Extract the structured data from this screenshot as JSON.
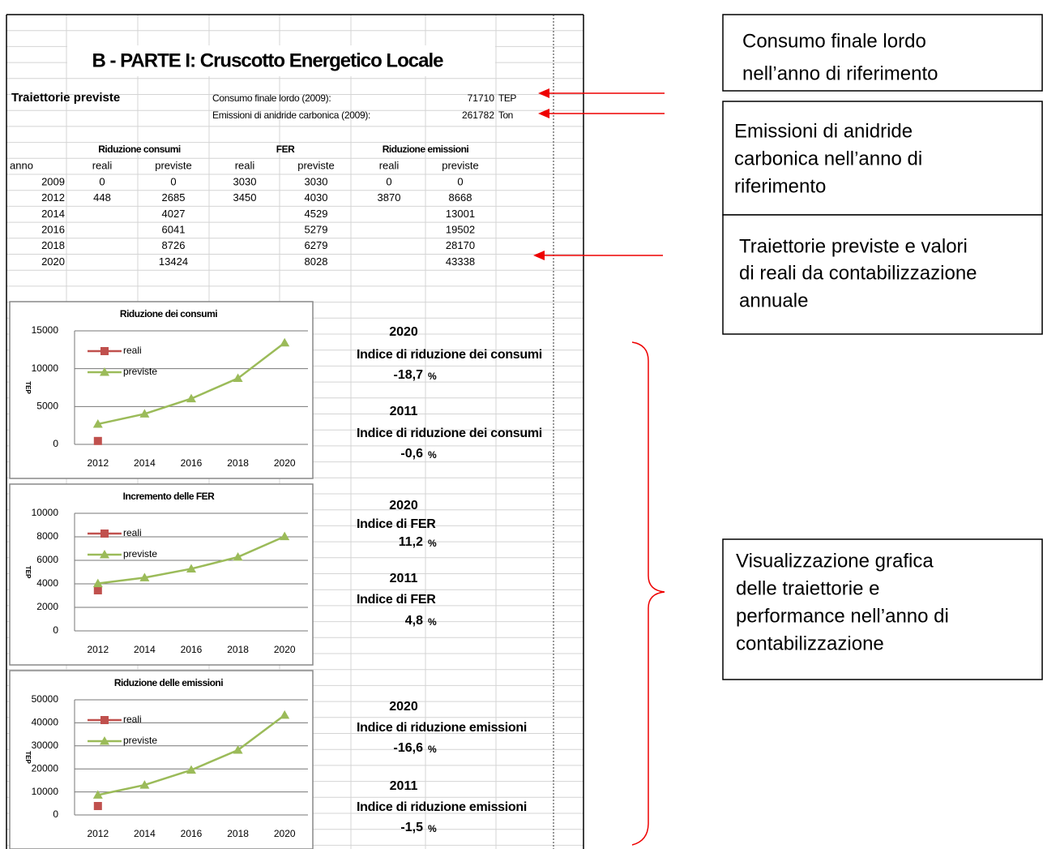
{
  "title": "B - PARTE I: Cruscotto Energetico Locale",
  "section_label": "Traiettorie previste",
  "info": [
    {
      "label": "Consumo finale lordo (2009):",
      "value": 71710,
      "unit": "TEP"
    },
    {
      "label": "Emissioni di anidride carbonica (2009):",
      "value": 261782,
      "unit": "Ton"
    }
  ],
  "table": {
    "group_headers": [
      "Riduzione consumi",
      "FER",
      "Riduzione emissioni"
    ],
    "columns": [
      "anno",
      "reali",
      "previste",
      "reali",
      "previste",
      "reali",
      "previste"
    ],
    "rows": [
      [
        2009,
        0,
        0,
        3030,
        3030,
        0,
        0
      ],
      [
        2012,
        448,
        2685,
        3450,
        4030,
        3870,
        8668
      ],
      [
        2014,
        null,
        4027,
        null,
        4529,
        null,
        13001
      ],
      [
        2016,
        null,
        6041,
        null,
        5279,
        null,
        19502
      ],
      [
        2018,
        null,
        8726,
        null,
        6279,
        null,
        28170
      ],
      [
        2020,
        null,
        13424,
        null,
        8028,
        null,
        43338
      ]
    ]
  },
  "chart_data": [
    {
      "type": "line",
      "title": "Riduzione dei consumi",
      "ylabel": "TEP",
      "categories": [
        2012,
        2014,
        2016,
        2018,
        2020
      ],
      "series": [
        {
          "name": "reali",
          "color": "#c0504d",
          "marker": "square",
          "values": [
            448,
            null,
            null,
            null,
            null
          ]
        },
        {
          "name": "previste",
          "color": "#9bbb59",
          "marker": "triangle",
          "values": [
            2685,
            4027,
            6041,
            8726,
            13424
          ]
        }
      ],
      "ylim": [
        0,
        15000
      ],
      "yticks": [
        0,
        5000,
        10000,
        15000
      ],
      "grid": true
    },
    {
      "type": "line",
      "title": "Incremento delle FER",
      "ylabel": "TEP",
      "categories": [
        2012,
        2014,
        2016,
        2018,
        2020
      ],
      "series": [
        {
          "name": "reali",
          "color": "#c0504d",
          "marker": "square",
          "values": [
            3450,
            null,
            null,
            null,
            null
          ]
        },
        {
          "name": "previste",
          "color": "#9bbb59",
          "marker": "triangle",
          "values": [
            4030,
            4529,
            5279,
            6279,
            8028
          ]
        }
      ],
      "ylim": [
        0,
        10000
      ],
      "yticks": [
        0,
        2000,
        4000,
        6000,
        8000,
        10000
      ],
      "grid": true
    },
    {
      "type": "line",
      "title": "Riduzione delle emissioni",
      "ylabel": "TEP",
      "categories": [
        2012,
        2014,
        2016,
        2018,
        2020
      ],
      "series": [
        {
          "name": "reali",
          "color": "#c0504d",
          "marker": "square",
          "values": [
            3870,
            null,
            null,
            null,
            null
          ]
        },
        {
          "name": "previste",
          "color": "#9bbb59",
          "marker": "triangle",
          "values": [
            8668,
            13001,
            19502,
            28170,
            43338
          ]
        }
      ],
      "ylim": [
        0,
        50000
      ],
      "yticks": [
        0,
        10000,
        20000,
        30000,
        40000,
        50000
      ],
      "grid": true
    }
  ],
  "indices": [
    {
      "year": 2020,
      "label": "Indice di riduzione dei consumi",
      "value": "-18,7",
      "unit": "%"
    },
    {
      "year": 2011,
      "label": "Indice di riduzione dei consumi",
      "value": "-0,6",
      "unit": "%"
    },
    {
      "year": 2020,
      "label": "Indice di FER",
      "value": "11,2",
      "unit": "%"
    },
    {
      "year": 2011,
      "label": "Indice di FER",
      "value": "4,8",
      "unit": "%"
    },
    {
      "year": 2020,
      "label": "Indice di riduzione emissioni",
      "value": "-16,6",
      "unit": "%"
    },
    {
      "year": 2011,
      "label": "Indice di riduzione emissioni",
      "value": "-1,5",
      "unit": "%"
    }
  ],
  "annotations": [
    {
      "lines": [
        "Consumo finale lordo",
        "nell’anno di riferimento"
      ]
    },
    {
      "lines": [
        "Emissioni di anidride",
        "carbonica nell’anno di",
        "riferimento"
      ]
    },
    {
      "lines": [
        "Traiettorie previste e valori",
        "di reali da contabilizzazione",
        "annuale"
      ]
    },
    {
      "lines": [
        "Visualizzazione grafica",
        "delle traiettorie e",
        "performance nell’anno di",
        "contabilizzazione"
      ]
    }
  ]
}
